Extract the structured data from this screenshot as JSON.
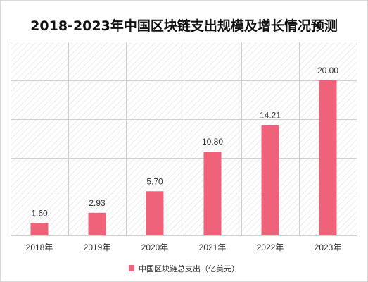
{
  "chart_data": {
    "type": "bar",
    "title": "2018-2023年中国区块链支出规模及增长情况预测",
    "categories": [
      "2018年",
      "2019年",
      "2020年",
      "2021年",
      "2022年",
      "2023年"
    ],
    "series": [
      {
        "name": "中国区块链总支出（亿美元）",
        "values": [
          1.6,
          2.93,
          5.7,
          10.8,
          14.21,
          20.0
        ]
      }
    ],
    "ylim": [
      0,
      25
    ],
    "grid": true,
    "legend_position": "bottom",
    "bar_color": "#f0627a"
  }
}
